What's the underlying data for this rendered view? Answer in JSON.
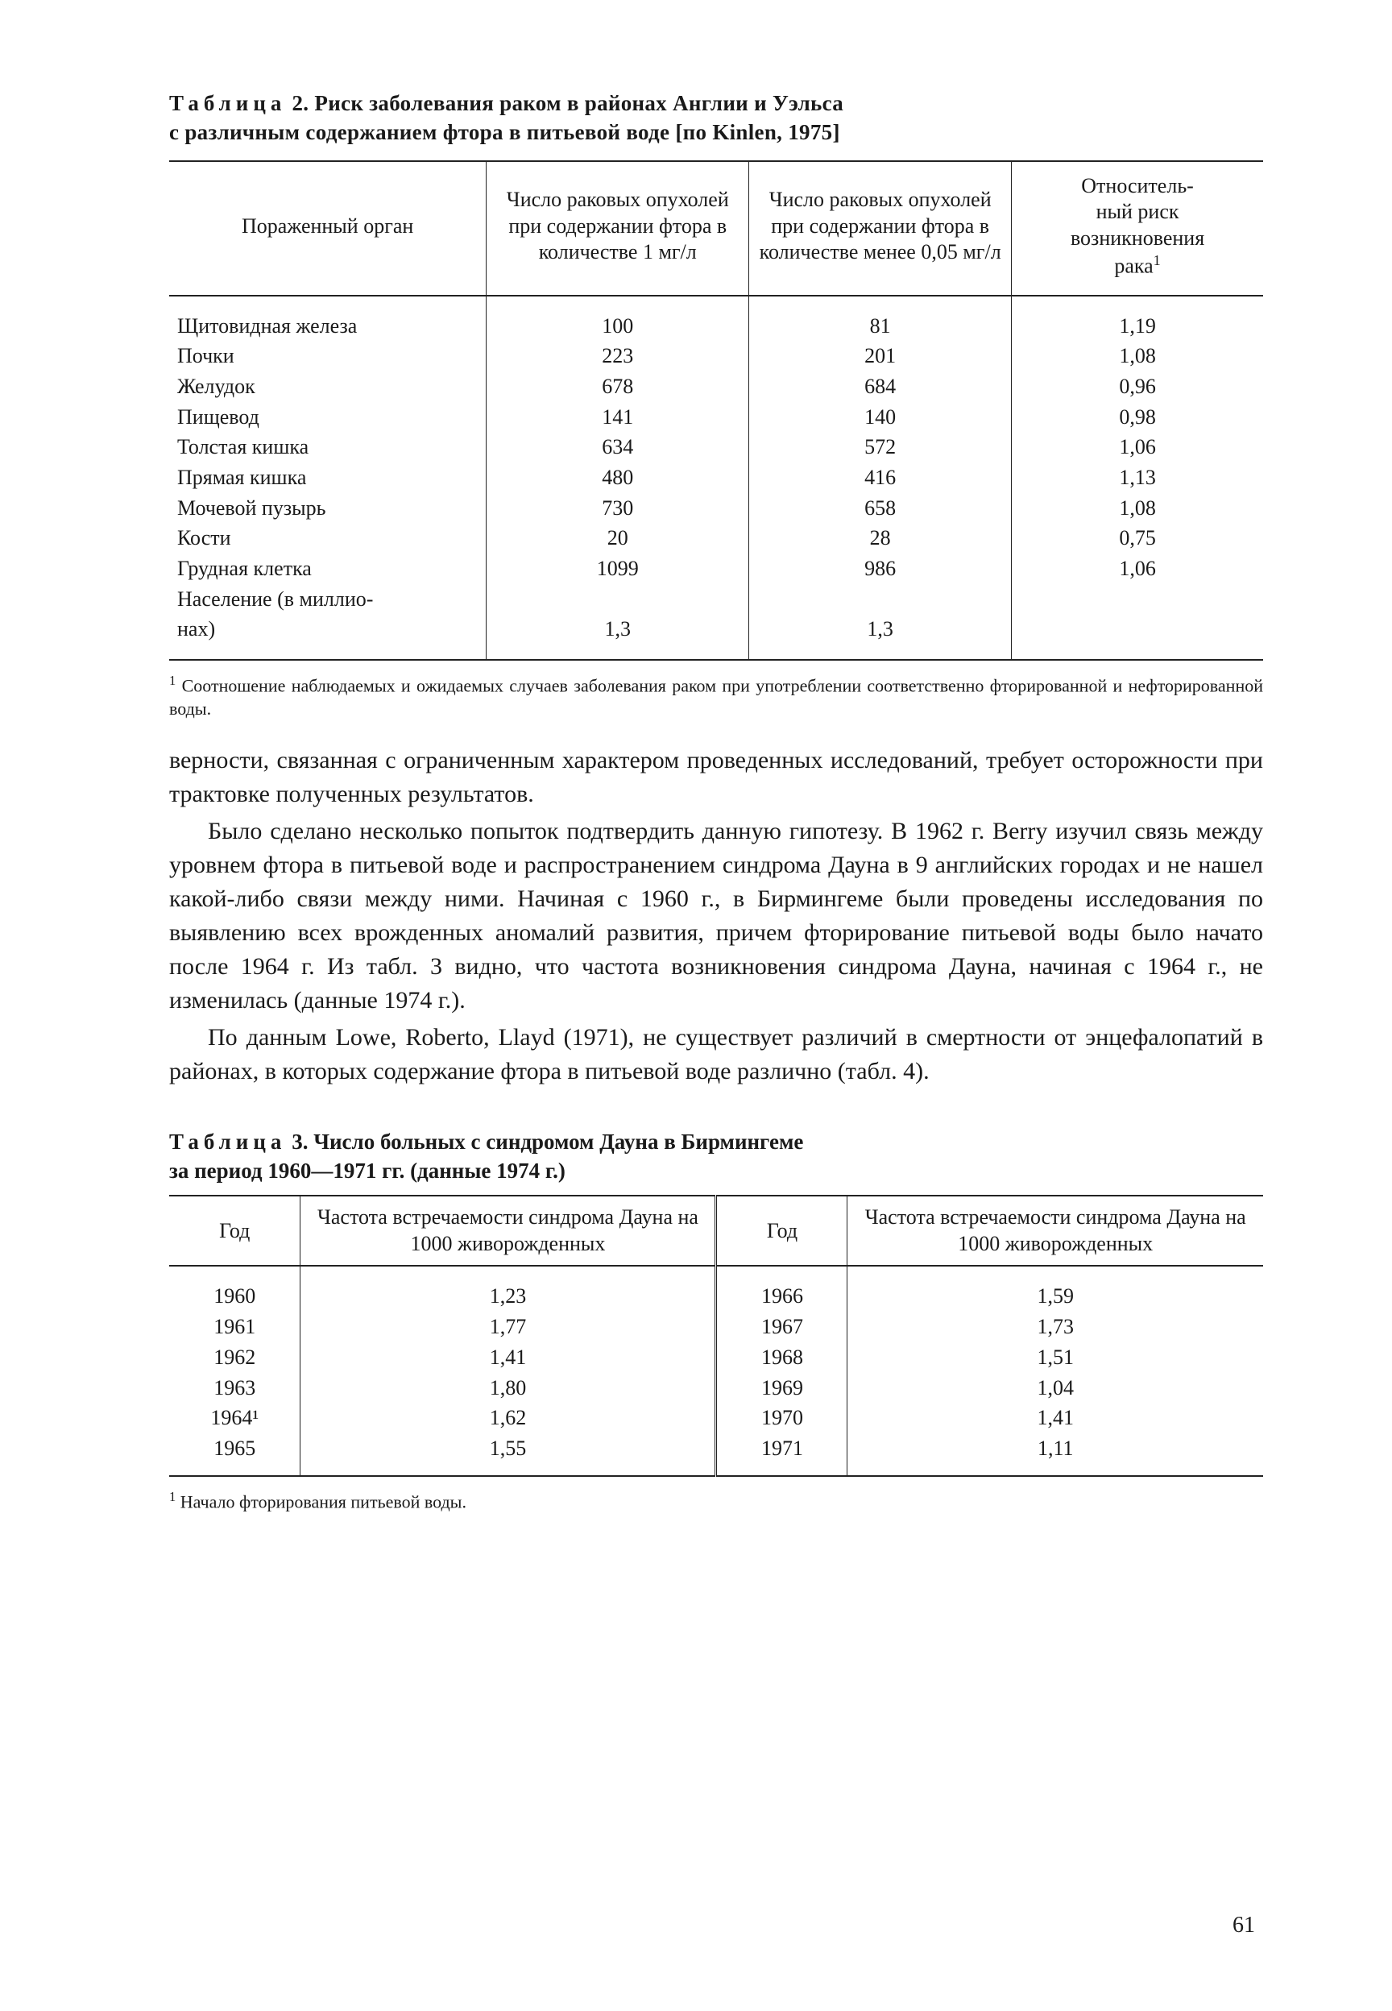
{
  "table2": {
    "caption_prefix": "Таблица",
    "caption_number": "2.",
    "caption_line1_rest": "Риск заболевания раком в районах Англии и Уэльса",
    "caption_line2": "с различным содержанием фтора в питьевой воде [по Kinlen, 1975]",
    "headers": {
      "c1": "Пораженный орган",
      "c2": "Число раковых опухолей при содержании фтора в количестве 1 мг/л",
      "c3": "Число раковых опухолей при содержании фтора в количестве менее 0,05 мг/л",
      "c4_l1": "Относитель-",
      "c4_l2": "ный риск",
      "c4_l3": "возникновения",
      "c4_l4": "рака",
      "c4_sup": "1"
    },
    "rows": {
      "organ": [
        "Щитовидная железа",
        "Почки",
        "Желудок",
        "Пищевод",
        "Толстая кишка",
        "Прямая кишка",
        "Мочевой пузырь",
        "Кости",
        "Грудная клетка",
        "Население (в миллио-",
        "нах)"
      ],
      "col2": [
        "100",
        "223",
        "678",
        "141",
        "634",
        "480",
        "730",
        "20",
        "1099",
        "",
        "1,3"
      ],
      "col3": [
        "81",
        "201",
        "684",
        "140",
        "572",
        "416",
        "658",
        "28",
        "986",
        "",
        "1,3"
      ],
      "col4": [
        "1,19",
        "1,08",
        "0,96",
        "0,98",
        "1,06",
        "1,13",
        "1,08",
        "0,75",
        "1,06",
        "",
        ""
      ]
    },
    "footnote_sup": "1",
    "footnote": " Соотношение наблюдаемых и ожидаемых случаев заболевания раком при употреблении соответственно фторированной и нефторированной воды."
  },
  "body": {
    "p1": "верности, связанная с ограниченным характером проведенных исследований, требует осторожности при трактовке полученных результатов.",
    "p2": "Было сделано несколько попыток подтвердить данную гипотезу. В 1962 г. Berry изучил связь между уровнем фтора в питьевой воде и распространением синдрома Дауна в 9 английских городах и не нашел какой-либо связи между ними. Начиная с 1960 г., в Бирмингеме были проведены исследования по выявлению всех врожденных аномалий развития, причем фторирование питьевой воды было начато после 1964 г. Из табл. 3 видно, что частота возникновения синдрома Дауна, начиная с 1964 г., не изменилась (данные 1974 г.).",
    "p3": "По данным Lowe, Roberto, Llayd (1971), не существует различий в смертности от энцефалопатий в районах, в которых содержание фтора в питьевой воде различно (табл. 4)."
  },
  "table3": {
    "caption_prefix": "Таблица",
    "caption_number": "3.",
    "caption_line1_rest": "Число больных с синдромом Дауна в Бирмингеме",
    "caption_line2": "за период 1960—1971 гг. (данные 1974 г.)",
    "headers": {
      "year": "Год",
      "rate": "Частота встречаемости синдрома Дауна на 1000 живорожденных"
    },
    "left": {
      "years": [
        "1960",
        "1961",
        "1962",
        "1963",
        "1964¹",
        "1965"
      ],
      "rates": [
        "1,23",
        "1,77",
        "1,41",
        "1,80",
        "1,62",
        "1,55"
      ]
    },
    "right": {
      "years": [
        "1966",
        "1967",
        "1968",
        "1969",
        "1970",
        "1971"
      ],
      "rates": [
        "1,59",
        "1,73",
        "1,51",
        "1,04",
        "1,41",
        "1,11"
      ]
    },
    "footnote_sup": "1",
    "footnote": " Начало фторирования питьевой воды."
  },
  "page_number": "61"
}
